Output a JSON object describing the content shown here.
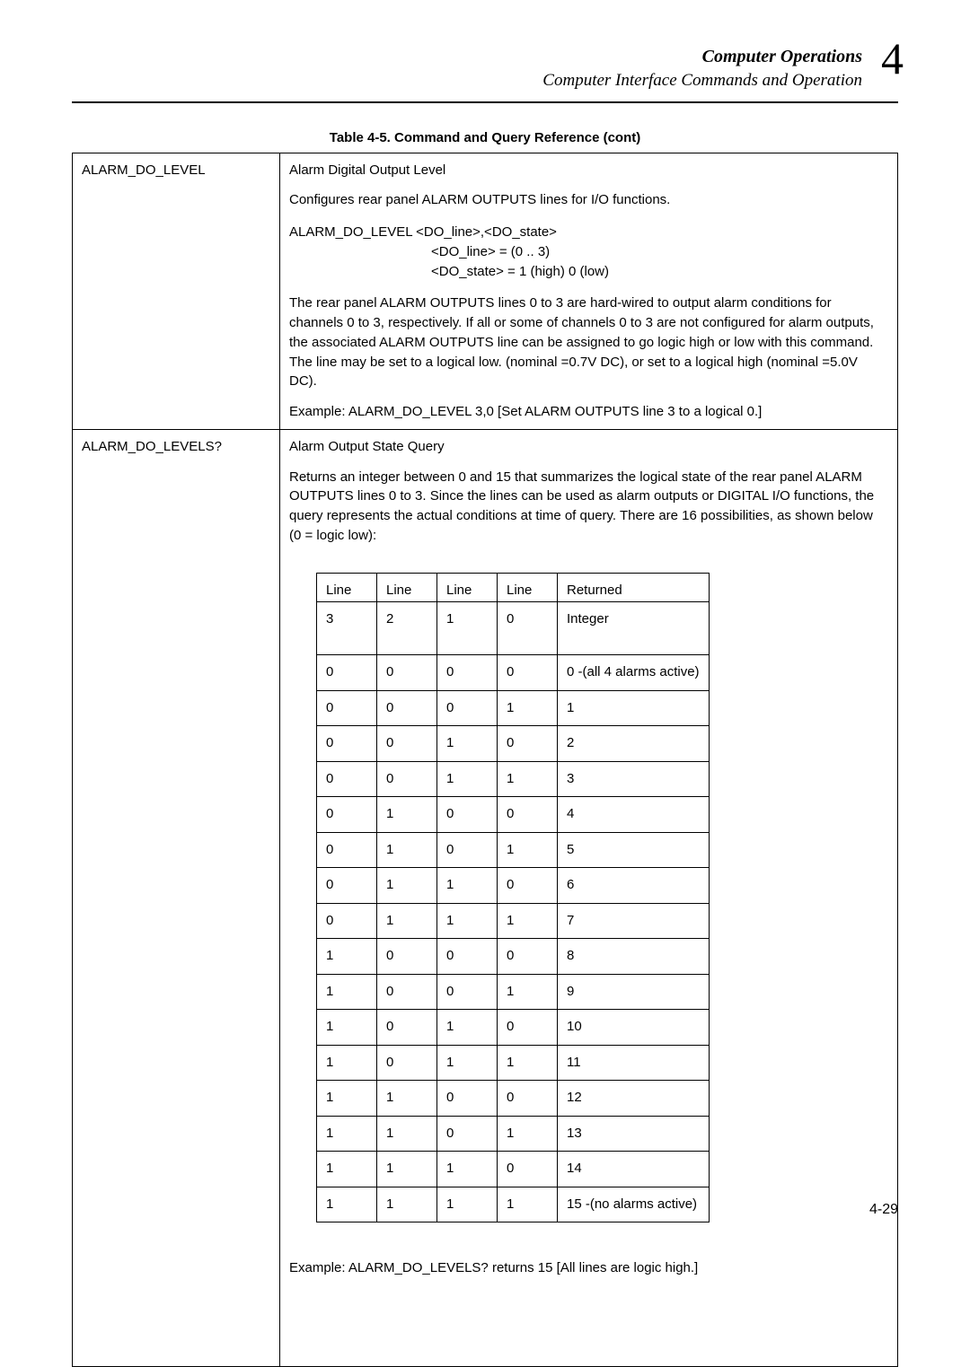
{
  "header": {
    "title": "Computer Operations",
    "subtitle": "Computer Interface Commands and Operation",
    "chapter_number": "4"
  },
  "caption": "Table 4-5. Command and Query Reference (cont)",
  "rows": [
    {
      "command": "ALARM_DO_LEVEL",
      "title": "Alarm Digital Output Level",
      "desc": "Configures rear panel ALARM OUTPUTS lines for I/O functions.",
      "syntax_main": "ALARM_DO_LEVEL <DO_line>,<DO_state>",
      "syntax_l1": "<DO_line>   =   (0 .. 3)",
      "syntax_l2": "<DO_state>  =   1 (high) 0 (low)",
      "body": "The rear panel ALARM OUTPUTS lines 0 to 3 are hard-wired to output alarm conditions for channels 0 to 3, respectively. If all or some of channels 0 to 3 are not configured for alarm outputs, the associated ALARM OUTPUTS line can be assigned to go logic high or low with this command. The line may be set to a logical low. (nominal =0.7V DC), or set to a logical high (nominal =5.0V DC).",
      "example": "Example: ALARM_DO_LEVEL 3,0 [Set ALARM OUTPUTS line 3 to a logical 0.]"
    },
    {
      "command": "ALARM_DO_LEVELS?",
      "title": "Alarm Output State Query",
      "desc": "Returns an integer between 0 and 15 that summarizes the logical state of the rear panel ALARM OUTPUTS lines 0 to 3. Since the lines can be used as alarm outputs or DIGITAL I/O functions, the query represents the actual conditions at time of query. There are 16 possibilities, as shown below (0 = logic low):",
      "truth_header_top": [
        "Line",
        "Line",
        "Line",
        "Line",
        "Returned"
      ],
      "truth_header_bot": [
        "3",
        "2",
        "1",
        "0",
        "Integer"
      ],
      "truth_rows": [
        [
          "0",
          "0",
          "0",
          "0",
          "0 -(all 4 alarms active)"
        ],
        [
          "0",
          "0",
          "0",
          "1",
          "1"
        ],
        [
          "0",
          "0",
          "1",
          "0",
          "2"
        ],
        [
          "0",
          "0",
          "1",
          "1",
          "3"
        ],
        [
          "0",
          "1",
          "0",
          "0",
          "4"
        ],
        [
          "0",
          "1",
          "0",
          "1",
          "5"
        ],
        [
          "0",
          "1",
          "1",
          "0",
          "6"
        ],
        [
          "0",
          "1",
          "1",
          "1",
          "7"
        ],
        [
          "1",
          "0",
          "0",
          "0",
          "8"
        ],
        [
          "1",
          "0",
          "0",
          "1",
          "9"
        ],
        [
          "1",
          "0",
          "1",
          "0",
          "10"
        ],
        [
          "1",
          "0",
          "1",
          "1",
          "11"
        ],
        [
          "1",
          "1",
          "0",
          "0",
          "12"
        ],
        [
          "1",
          "1",
          "0",
          "1",
          "13"
        ],
        [
          "1",
          "1",
          "1",
          "0",
          "14"
        ],
        [
          "1",
          "1",
          "1",
          "1",
          "15 -(no alarms active)"
        ]
      ],
      "example": "Example: ALARM_DO_LEVELS? returns 15 [All lines are logic high.]"
    }
  ],
  "page_number": "4-29"
}
